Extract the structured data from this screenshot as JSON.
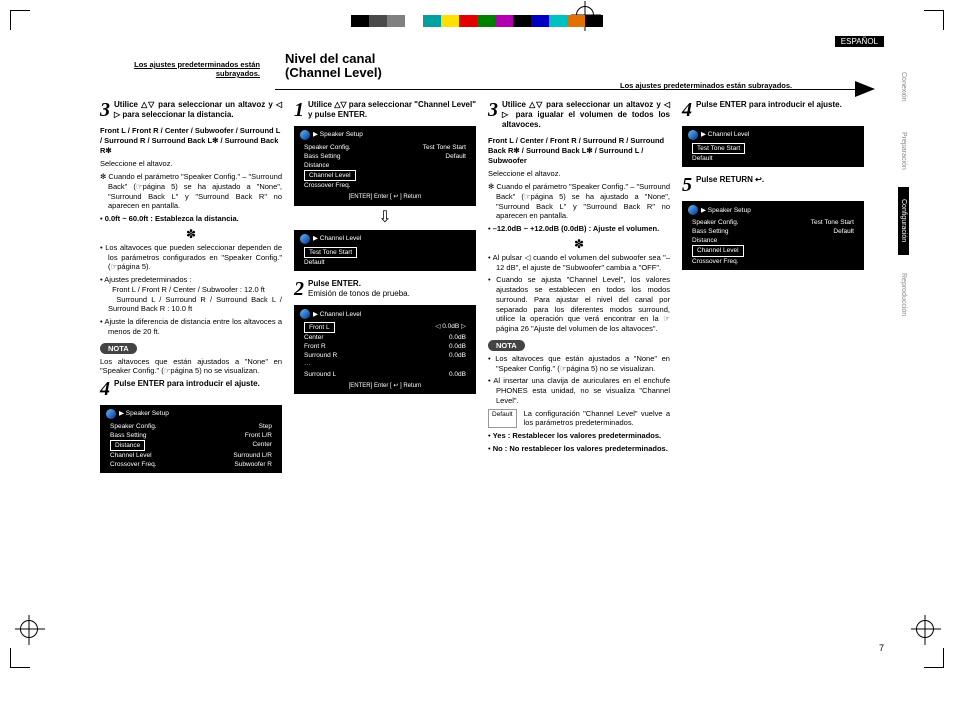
{
  "colorbar": [
    "#000000",
    "#4a4a4a",
    "#808080",
    "#ffffff",
    "#00a0a0",
    "#ffe000",
    "#e00000",
    "#008000",
    "#b000b0",
    "#000000",
    "#0000c0",
    "#00c0c0",
    "#e07000",
    "#000000"
  ],
  "language_tag": "ESPAÑOL",
  "defaults_note": "Los ajustes predeterminados están subrayados.",
  "section": {
    "title_line1": "Nivel del canal",
    "title_line2": "(Channel Level)"
  },
  "page_number": "7",
  "side_tabs": [
    "Conexión",
    "Preparación",
    "Configuración",
    "Reproducción"
  ],
  "side_tabs_active_index": 2,
  "col1": {
    "step3": {
      "num": "3",
      "text_pre": "Utilice ",
      "sym": "△▽",
      "text_mid": " para seleccionar un altavoz y ",
      "sym2": "◁ ▷",
      "text_post": " para seleccionar la distancia."
    },
    "channels": "Front L / Front R / Center / Subwoofer / Surround L / Surround R / Surround Back L✻ / Surround Back R✻",
    "select_speaker": "Seleccione el altavoz.",
    "asterisk": "✻ Cuando el parámetro \"Speaker Config.\" – \"Surround Back\" (☞página 5) se ha ajustado a \"None\", \"Surround Back L\" y \"Surround Back R\" no aparecen en pantalla.",
    "range": "0.0ft ~ 60.0ft : Establezca la distancia.",
    "note1": "Los altavoces que pueden seleccionar dependen de los parámetros configurados en \"Speaker Config.\" (☞página 5).",
    "note2_label": "Ajustes predeterminados :",
    "note2_a": "Front L / Front R / Center / Subwoofer : 12.0 ft",
    "note2_b": "Surround L / Surround R / Surround Back L / Surround Back R : 10.0 ft",
    "note3": "Ajuste la diferencia de distancia entre los altavoces a menos de 20 ft.",
    "nota": "NOTA",
    "nota_text": "Los altavoces que están ajustados a \"None\" en \"Speaker Config.\" (☞página 5) no se visualizan.",
    "step4": {
      "num": "4",
      "text_pre": "Pulse ",
      "enter": "ENTER",
      "text_post": " para introducir el ajuste."
    },
    "osd4": {
      "title": "Speaker Setup",
      "left": [
        "Speaker Config.",
        "Bass Setting",
        "Distance",
        "Channel Level",
        "Crossover Freq."
      ],
      "right": [
        "Step",
        "Front L/R",
        "Center",
        "Surround L/R",
        "Subwoofer R"
      ],
      "selected": "Distance"
    }
  },
  "col2": {
    "step1": {
      "num": "1",
      "text_pre": "Utilice ",
      "sym": "△▽",
      "text_mid": " para seleccionar \"Channel Level\" y pulse ",
      "enter": "ENTER",
      "text_post": "."
    },
    "osd1": {
      "title": "Speaker Setup",
      "left": [
        "Speaker Config.",
        "Bass Setting",
        "Distance",
        "Channel Level",
        "Crossover Freq."
      ],
      "right": [
        "Test Tone Start",
        "Default"
      ],
      "selected": "Channel Level",
      "footer": "[ENTER] Enter    [ ↩ ] Return"
    },
    "step2": {
      "num": "2",
      "text_pre": "Pulse ",
      "enter": "ENTER",
      "text_post": "."
    },
    "step2_sub": "Emisión de tonos de prueba.",
    "osd2": {
      "title": "Channel Level",
      "left": [
        "Test Tone Start",
        "Default"
      ],
      "selected": "Test Tone Start"
    },
    "osd3": {
      "title": "Channel Level",
      "rows": [
        [
          "Front L",
          "◁  0.0dB  ▷"
        ],
        [
          "Center",
          "0.0dB"
        ],
        [
          "Front R",
          "0.0dB"
        ],
        [
          "Surround R",
          "0.0dB"
        ],
        [
          "···",
          ""
        ],
        [
          "Surround L",
          "0.0dB"
        ]
      ],
      "selected": "Front L",
      "footer": "[ENTER] Enter    [ ↩ ] Return"
    }
  },
  "col3": {
    "step3": {
      "num": "3",
      "text_pre": "Utilice ",
      "sym": "△▽",
      "text_mid": " para seleccionar un altavoz y ",
      "sym2": "◁ ▷",
      "text_post": " para igualar el volumen de todos los altavoces."
    },
    "channels": "Front L / Center / Front R / Surround R / Surround Back R✻ / Surround Back L✻ / Surround L / Subwoofer",
    "select_speaker": "Seleccione el altavoz.",
    "asterisk": "✻ Cuando el parámetro \"Speaker Config.\" – \"Surround Back\" (☞página 5) se ha ajustado a \"None\", \"Surround Back L\" y \"Surround Back R\" no aparecen en pantalla.",
    "range": "–12.0dB ~ +12.0dB (0.0dB) : Ajuste el volumen.",
    "n1": "Al pulsar ◁ cuando el volumen del subwoofer sea \"–12 dB\", el ajuste de \"Subwoofer\" cambia a \"OFF\".",
    "n2": "Cuando se ajusta \"Channel Level\", los valores ajustados se establecen en todos los modos surround. Para ajustar el nivel del canal por separado para los diferentes modos surround, utilice la operación que verá encontrar en la ☞página 26 \"Ajuste del volumen de los altavoces\".",
    "nota": "NOTA",
    "nota_a": "Los altavoces que están ajustados a \"None\" en \"Speaker Config.\" (☞página 5) no se visualizan.",
    "nota_b": "Al insertar una clavija de auriculares en el enchufe PHONES esta unidad, no se visualiza \"Channel Level\".",
    "default_label": "Default",
    "default_text": "La configuración \"Channel Level\" vuelve a los parámetros predeterminados.",
    "yes": "Yes : Restablecer los valores predeterminados.",
    "no": "No : No restablecer los valores predeterminados."
  },
  "col4": {
    "step4": {
      "num": "4",
      "text_pre": "Pulse ",
      "enter": "ENTER",
      "text_post": " para introducir el ajuste."
    },
    "osd4": {
      "title": "Channel Level",
      "left": [
        "Test Tone Start",
        "Default"
      ],
      "selected": "Test Tone Start"
    },
    "step5": {
      "num": "5",
      "text_pre": "Pulse ",
      "return": "RETURN",
      "sym": " ↩.",
      "text_post": ""
    },
    "osd5": {
      "title": "Speaker Setup",
      "left": [
        "Speaker Config.",
        "Bass Setting",
        "Distance",
        "Channel Level",
        "Crossover Freq."
      ],
      "right": [
        "Test Tone Start",
        "Default"
      ],
      "selected": "Channel Level"
    }
  }
}
